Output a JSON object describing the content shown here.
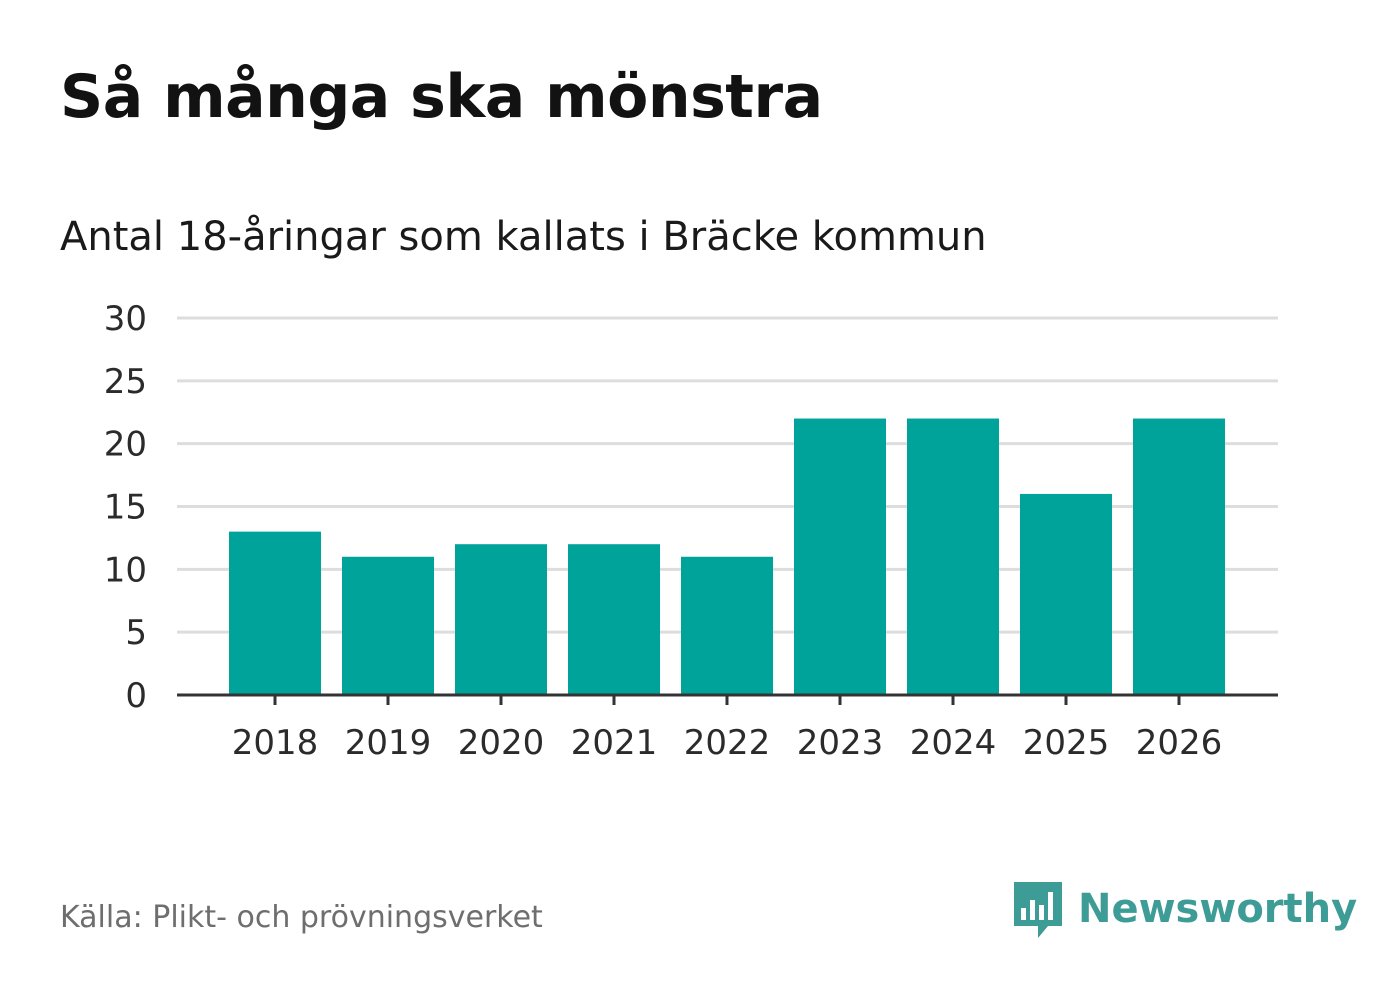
{
  "header": {
    "title": "Så många ska mönstra",
    "subtitle": "Antal 18-åringar som kallats i Bräcke kommun"
  },
  "footer": {
    "source": "Källa: Plikt- och prövningsverket",
    "brand": "Newsworthy",
    "brand_icon": "bar-chart-speech-bubble-icon"
  },
  "colors": {
    "bar": "#00a39a",
    "gridline": "#dddddd",
    "axis": "#333333",
    "brand": "#3e9c96"
  },
  "chart_data": {
    "type": "bar",
    "title": "Så många ska mönstra",
    "subtitle": "Antal 18-åringar som kallats i Bräcke kommun",
    "categories": [
      "2018",
      "2019",
      "2020",
      "2021",
      "2022",
      "2023",
      "2024",
      "2025",
      "2026"
    ],
    "values": [
      13,
      11,
      12,
      12,
      11,
      22,
      22,
      16,
      22
    ],
    "xlabel": "",
    "ylabel": "",
    "ylim": [
      0,
      30
    ],
    "yticks": [
      0,
      5,
      10,
      15,
      20,
      25,
      30
    ],
    "grid": true,
    "legend": "none"
  }
}
